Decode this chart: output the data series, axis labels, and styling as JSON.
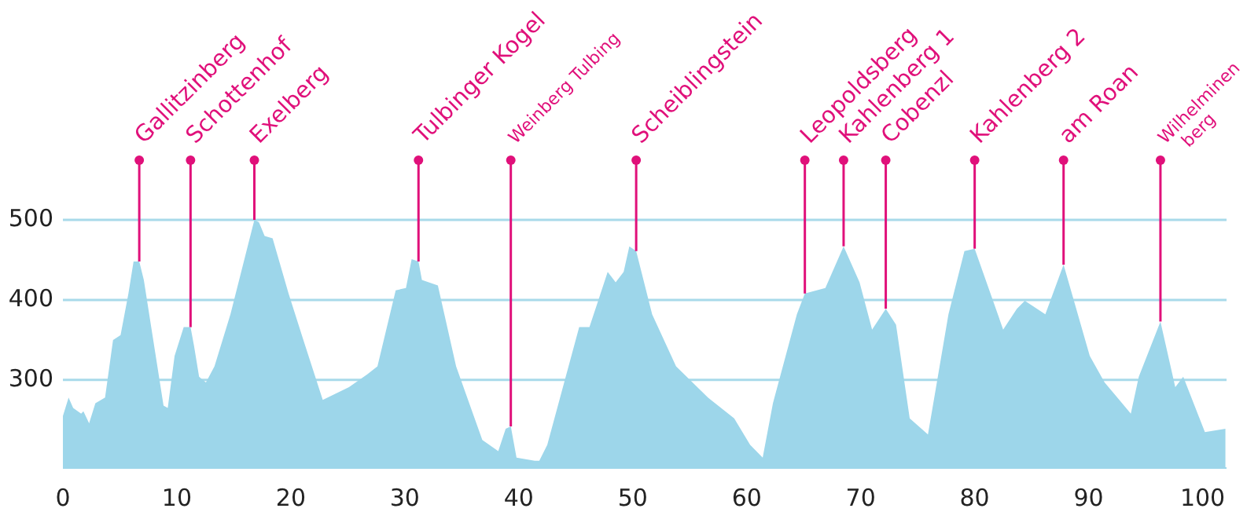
{
  "chart_data": {
    "type": "area",
    "color": "#9dd6ea",
    "x": [
      0,
      0.5,
      0.9,
      1.6,
      1.8,
      2.3,
      2.85,
      3.7,
      4.4,
      5.06,
      5.75,
      6.2,
      6.7,
      7.1,
      8.83,
      9.2,
      9.8,
      10.6,
      11.2,
      11.5,
      11.95,
      12.55,
      13.3,
      14.7,
      16.8,
      17.2,
      17.7,
      18.4,
      19.8,
      21.1,
      22.8,
      25.1,
      26.7,
      27.6,
      29.2,
      30.1,
      30.6,
      31.2,
      31.5,
      32.9,
      34.5,
      36.8,
      38.2,
      38.85,
      39.3,
      39.8,
      41.4,
      41.8,
      42.5,
      45.3,
      46.2,
      47.8,
      48.5,
      49.2,
      49.7,
      50.3,
      51.7,
      53.8,
      56.6,
      58.9,
      60.3,
      61.4,
      62.3,
      64.4,
      65.1,
      66.9,
      68.5,
      69.9,
      71.0,
      72.2,
      73.1,
      74.3,
      75.9,
      76.3,
      77.7,
      79.1,
      80.0,
      82.5,
      83.7,
      84.4,
      86.2,
      87.8,
      90.1,
      91.4,
      93.7,
      94.4,
      96.3,
      97.6,
      98.3,
      100.2,
      102.0
    ],
    "values": [
      255,
      278,
      265,
      258,
      261,
      246,
      271,
      278,
      350,
      356,
      408,
      448,
      448,
      425,
      268,
      265,
      330,
      366,
      366,
      343,
      304,
      297,
      317,
      382,
      500,
      497,
      480,
      477,
      408,
      350,
      275,
      291,
      307,
      317,
      412,
      415,
      451,
      448,
      425,
      418,
      317,
      225,
      211,
      239,
      242,
      203,
      199,
      199,
      219,
      366,
      366,
      435,
      422,
      435,
      467,
      461,
      382,
      317,
      278,
      252,
      219,
      203,
      271,
      382,
      408,
      415,
      467,
      422,
      363,
      389,
      369,
      252,
      232,
      265,
      382,
      461,
      464,
      363,
      389,
      399,
      382,
      444,
      330,
      297,
      258,
      304,
      373,
      291,
      304,
      235,
      239
    ],
    "xlim": [
      0,
      102.1
    ],
    "xticks": [
      0,
      10,
      20,
      30,
      40,
      50,
      60,
      70,
      80,
      90,
      100
    ],
    "ylim": [
      190,
      500
    ],
    "yticks": [
      300,
      400,
      500
    ],
    "grid": "y",
    "annotations": [
      {
        "text": "Gallitzinberg",
        "x": 6.7,
        "y": 448
      },
      {
        "text": "Schottenhof",
        "x": 11.2,
        "y": 366
      },
      {
        "text": "Exelberg",
        "x": 16.8,
        "y": 500
      },
      {
        "text": "Tulbinger Kogel",
        "x": 31.2,
        "y": 448
      },
      {
        "text": "Weinberg Tulbing",
        "x": 39.3,
        "y": 242
      },
      {
        "text": "Scheiblingstein",
        "x": 50.3,
        "y": 461
      },
      {
        "text": "Leopoldsberg",
        "x": 65.1,
        "y": 408
      },
      {
        "text": "Kahlenberg 1",
        "x": 68.5,
        "y": 467
      },
      {
        "text": "Cobenzl",
        "x": 72.2,
        "y": 389
      },
      {
        "text": "Kahlenberg 2",
        "x": 80.0,
        "y": 464
      },
      {
        "text": "am Roan",
        "x": 87.8,
        "y": 444
      },
      {
        "text": "Wilhelminen\nberg",
        "x": 96.3,
        "y": 373
      }
    ]
  }
}
